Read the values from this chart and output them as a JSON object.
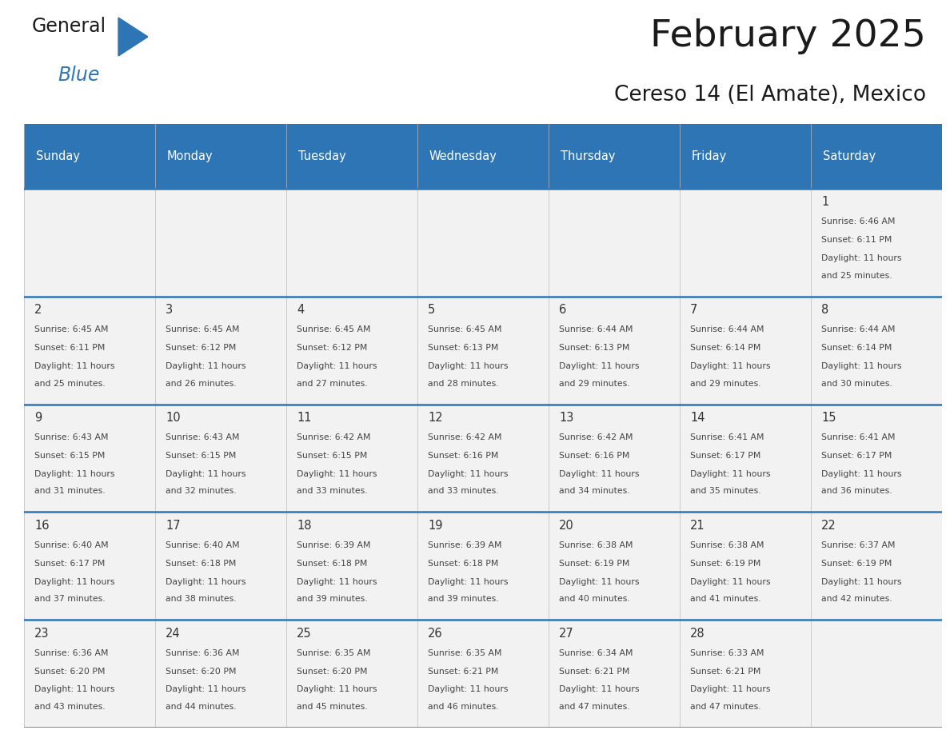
{
  "title": "February 2025",
  "subtitle": "Cereso 14 (El Amate), Mexico",
  "days_of_week": [
    "Sunday",
    "Monday",
    "Tuesday",
    "Wednesday",
    "Thursday",
    "Friday",
    "Saturday"
  ],
  "header_bg": "#2E75B6",
  "header_text": "#FFFFFF",
  "cell_bg": "#F2F2F2",
  "separator_color": "#2E75B6",
  "grid_color": "#BBBBBB",
  "day_number_color": "#333333",
  "cell_text_color": "#444444",
  "title_color": "#1a1a1a",
  "subtitle_color": "#1a1a1a",
  "logo_general_color": "#1a1a1a",
  "logo_blue_color": "#2E75B6",
  "logo_triangle_color": "#2E75B6",
  "calendar": [
    [
      null,
      null,
      null,
      null,
      null,
      null,
      {
        "day": 1,
        "sunrise": "6:46 AM",
        "sunset": "6:11 PM",
        "daylight": "11 hours and 25 minutes."
      }
    ],
    [
      {
        "day": 2,
        "sunrise": "6:45 AM",
        "sunset": "6:11 PM",
        "daylight": "11 hours and 25 minutes."
      },
      {
        "day": 3,
        "sunrise": "6:45 AM",
        "sunset": "6:12 PM",
        "daylight": "11 hours and 26 minutes."
      },
      {
        "day": 4,
        "sunrise": "6:45 AM",
        "sunset": "6:12 PM",
        "daylight": "11 hours and 27 minutes."
      },
      {
        "day": 5,
        "sunrise": "6:45 AM",
        "sunset": "6:13 PM",
        "daylight": "11 hours and 28 minutes."
      },
      {
        "day": 6,
        "sunrise": "6:44 AM",
        "sunset": "6:13 PM",
        "daylight": "11 hours and 29 minutes."
      },
      {
        "day": 7,
        "sunrise": "6:44 AM",
        "sunset": "6:14 PM",
        "daylight": "11 hours and 29 minutes."
      },
      {
        "day": 8,
        "sunrise": "6:44 AM",
        "sunset": "6:14 PM",
        "daylight": "11 hours and 30 minutes."
      }
    ],
    [
      {
        "day": 9,
        "sunrise": "6:43 AM",
        "sunset": "6:15 PM",
        "daylight": "11 hours and 31 minutes."
      },
      {
        "day": 10,
        "sunrise": "6:43 AM",
        "sunset": "6:15 PM",
        "daylight": "11 hours and 32 minutes."
      },
      {
        "day": 11,
        "sunrise": "6:42 AM",
        "sunset": "6:15 PM",
        "daylight": "11 hours and 33 minutes."
      },
      {
        "day": 12,
        "sunrise": "6:42 AM",
        "sunset": "6:16 PM",
        "daylight": "11 hours and 33 minutes."
      },
      {
        "day": 13,
        "sunrise": "6:42 AM",
        "sunset": "6:16 PM",
        "daylight": "11 hours and 34 minutes."
      },
      {
        "day": 14,
        "sunrise": "6:41 AM",
        "sunset": "6:17 PM",
        "daylight": "11 hours and 35 minutes."
      },
      {
        "day": 15,
        "sunrise": "6:41 AM",
        "sunset": "6:17 PM",
        "daylight": "11 hours and 36 minutes."
      }
    ],
    [
      {
        "day": 16,
        "sunrise": "6:40 AM",
        "sunset": "6:17 PM",
        "daylight": "11 hours and 37 minutes."
      },
      {
        "day": 17,
        "sunrise": "6:40 AM",
        "sunset": "6:18 PM",
        "daylight": "11 hours and 38 minutes."
      },
      {
        "day": 18,
        "sunrise": "6:39 AM",
        "sunset": "6:18 PM",
        "daylight": "11 hours and 39 minutes."
      },
      {
        "day": 19,
        "sunrise": "6:39 AM",
        "sunset": "6:18 PM",
        "daylight": "11 hours and 39 minutes."
      },
      {
        "day": 20,
        "sunrise": "6:38 AM",
        "sunset": "6:19 PM",
        "daylight": "11 hours and 40 minutes."
      },
      {
        "day": 21,
        "sunrise": "6:38 AM",
        "sunset": "6:19 PM",
        "daylight": "11 hours and 41 minutes."
      },
      {
        "day": 22,
        "sunrise": "6:37 AM",
        "sunset": "6:19 PM",
        "daylight": "11 hours and 42 minutes."
      }
    ],
    [
      {
        "day": 23,
        "sunrise": "6:36 AM",
        "sunset": "6:20 PM",
        "daylight": "11 hours and 43 minutes."
      },
      {
        "day": 24,
        "sunrise": "6:36 AM",
        "sunset": "6:20 PM",
        "daylight": "11 hours and 44 minutes."
      },
      {
        "day": 25,
        "sunrise": "6:35 AM",
        "sunset": "6:20 PM",
        "daylight": "11 hours and 45 minutes."
      },
      {
        "day": 26,
        "sunrise": "6:35 AM",
        "sunset": "6:21 PM",
        "daylight": "11 hours and 46 minutes."
      },
      {
        "day": 27,
        "sunrise": "6:34 AM",
        "sunset": "6:21 PM",
        "daylight": "11 hours and 47 minutes."
      },
      {
        "day": 28,
        "sunrise": "6:33 AM",
        "sunset": "6:21 PM",
        "daylight": "11 hours and 47 minutes."
      },
      null
    ]
  ]
}
